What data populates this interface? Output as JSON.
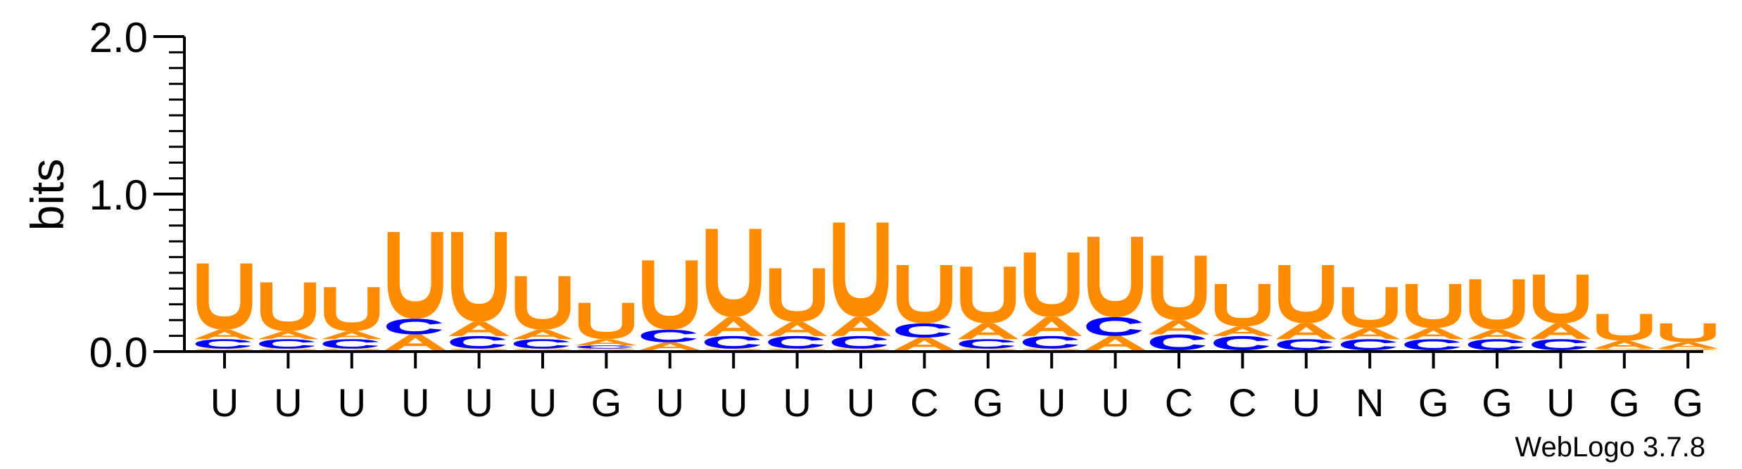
{
  "chart_data": {
    "type": "sequence-logo",
    "ylabel": "bits",
    "ylim": [
      0,
      2.0
    ],
    "yticks": [
      "0.0",
      "1.0",
      "2.0"
    ],
    "y_minor_step": 0.1,
    "colors": {
      "A": "#ff8c00",
      "U": "#ff8c00",
      "C": "#0000ff",
      "G": "#ffa500"
    },
    "positions": [
      "U",
      "U",
      "U",
      "U",
      "U",
      "U",
      "G",
      "U",
      "U",
      "U",
      "U",
      "C",
      "G",
      "U",
      "U",
      "C",
      "C",
      "U",
      "N",
      "G",
      "G",
      "U",
      "G",
      "G"
    ],
    "stacks": [
      [
        {
          "l": "G",
          "h": 0.01
        },
        {
          "l": "C",
          "h": 0.06
        },
        {
          "l": "A",
          "h": 0.06
        },
        {
          "l": "U",
          "h": 0.42
        }
      ],
      [
        {
          "l": "G",
          "h": 0.01
        },
        {
          "l": "C",
          "h": 0.06
        },
        {
          "l": "A",
          "h": 0.05
        },
        {
          "l": "U",
          "h": 0.31
        }
      ],
      [
        {
          "l": "G",
          "h": 0.01
        },
        {
          "l": "C",
          "h": 0.06
        },
        {
          "l": "A",
          "h": 0.05
        },
        {
          "l": "U",
          "h": 0.28
        }
      ],
      [
        {
          "l": "A",
          "h": 0.1
        },
        {
          "l": "C",
          "h": 0.1
        },
        {
          "l": "U",
          "h": 0.55
        }
      ],
      [
        {
          "l": "G",
          "h": 0.01
        },
        {
          "l": "C",
          "h": 0.08
        },
        {
          "l": "A",
          "h": 0.09
        },
        {
          "l": "U",
          "h": 0.57
        }
      ],
      [
        {
          "l": "G",
          "h": 0.01
        },
        {
          "l": "C",
          "h": 0.06
        },
        {
          "l": "A",
          "h": 0.06
        },
        {
          "l": "U",
          "h": 0.34
        }
      ],
      [
        {
          "l": "G",
          "h": 0.01
        },
        {
          "l": "C",
          "h": 0.02
        },
        {
          "l": "A",
          "h": 0.04
        },
        {
          "l": "U",
          "h": 0.23
        }
      ],
      [
        {
          "l": "A",
          "h": 0.05
        },
        {
          "l": "C",
          "h": 0.08
        },
        {
          "l": "U",
          "h": 0.44
        }
      ],
      [
        {
          "l": "G",
          "h": 0.01
        },
        {
          "l": "C",
          "h": 0.08
        },
        {
          "l": "A",
          "h": 0.12
        },
        {
          "l": "U",
          "h": 0.56
        }
      ],
      [
        {
          "l": "G",
          "h": 0.01
        },
        {
          "l": "C",
          "h": 0.08
        },
        {
          "l": "A",
          "h": 0.09
        },
        {
          "l": "U",
          "h": 0.34
        }
      ],
      [
        {
          "l": "G",
          "h": 0.01
        },
        {
          "l": "C",
          "h": 0.08
        },
        {
          "l": "A",
          "h": 0.12
        },
        {
          "l": "U",
          "h": 0.6
        }
      ],
      [
        {
          "l": "A",
          "h": 0.08
        },
        {
          "l": "C",
          "h": 0.09
        },
        {
          "l": "U",
          "h": 0.37
        }
      ],
      [
        {
          "l": "G",
          "h": 0.01
        },
        {
          "l": "C",
          "h": 0.06
        },
        {
          "l": "A",
          "h": 0.1
        },
        {
          "l": "U",
          "h": 0.36
        }
      ],
      [
        {
          "l": "G",
          "h": 0.01
        },
        {
          "l": "C",
          "h": 0.08
        },
        {
          "l": "A",
          "h": 0.12
        },
        {
          "l": "U",
          "h": 0.41
        }
      ],
      [
        {
          "l": "A",
          "h": 0.09
        },
        {
          "l": "C",
          "h": 0.12
        },
        {
          "l": "U",
          "h": 0.51
        }
      ],
      [
        {
          "l": "C",
          "h": 0.1
        },
        {
          "l": "A",
          "h": 0.09
        },
        {
          "l": "U",
          "h": 0.41
        }
      ],
      [
        {
          "l": "C",
          "h": 0.09
        },
        {
          "l": "A",
          "h": 0.06
        },
        {
          "l": "U",
          "h": 0.27
        }
      ],
      [
        {
          "l": "C",
          "h": 0.07
        },
        {
          "l": "A",
          "h": 0.1
        },
        {
          "l": "U",
          "h": 0.37
        }
      ],
      [
        {
          "l": "C",
          "h": 0.07
        },
        {
          "l": "A",
          "h": 0.07
        },
        {
          "l": "U",
          "h": 0.26
        }
      ],
      [
        {
          "l": "C",
          "h": 0.07
        },
        {
          "l": "A",
          "h": 0.07
        },
        {
          "l": "U",
          "h": 0.28
        }
      ],
      [
        {
          "l": "C",
          "h": 0.07
        },
        {
          "l": "A",
          "h": 0.06
        },
        {
          "l": "U",
          "h": 0.32
        }
      ],
      [
        {
          "l": "C",
          "h": 0.07
        },
        {
          "l": "A",
          "h": 0.1
        },
        {
          "l": "U",
          "h": 0.31
        }
      ],
      [
        {
          "l": "G",
          "h": 0.01
        },
        {
          "l": "A",
          "h": 0.05
        },
        {
          "l": "U",
          "h": 0.17
        }
      ],
      [
        {
          "l": "G",
          "h": 0.01
        },
        {
          "l": "A",
          "h": 0.04
        },
        {
          "l": "U",
          "h": 0.12
        }
      ]
    ]
  },
  "credit": "WebLogo 3.7.8"
}
